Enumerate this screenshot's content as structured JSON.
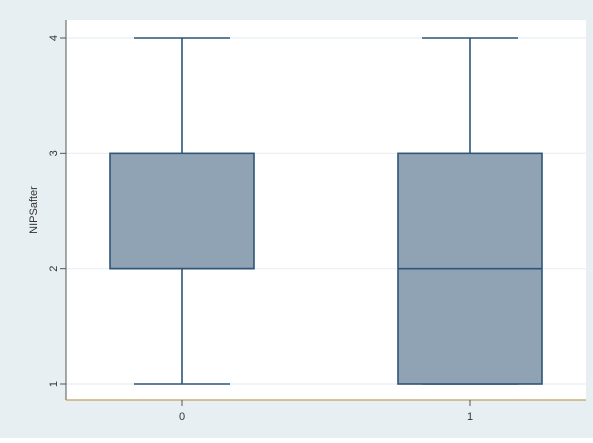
{
  "colors": {
    "outer_background": "#e8eff3",
    "plot_background": "#ffffff",
    "box_fill": "#8fa3b5",
    "box_stroke": "#2f5577",
    "gridline": "#e8eff3",
    "axis_line": "#c0a060",
    "text": "#333333"
  },
  "chart_data": {
    "type": "box",
    "title": "",
    "xlabel": "",
    "ylabel": "NIPSafter",
    "categories": [
      "0",
      "1"
    ],
    "ylim": [
      0.9,
      4.15
    ],
    "yticks": [
      1,
      2,
      3,
      4
    ],
    "ytick_labels": [
      "1",
      "2",
      "3",
      "4"
    ],
    "grid": true,
    "legend": "none",
    "boxes": [
      {
        "category": "0",
        "min": 1,
        "q1": 2,
        "median": 2,
        "q3": 3,
        "max": 4
      },
      {
        "category": "1",
        "min": 1,
        "q1": 1,
        "median": 2,
        "q3": 3,
        "max": 4
      }
    ]
  }
}
